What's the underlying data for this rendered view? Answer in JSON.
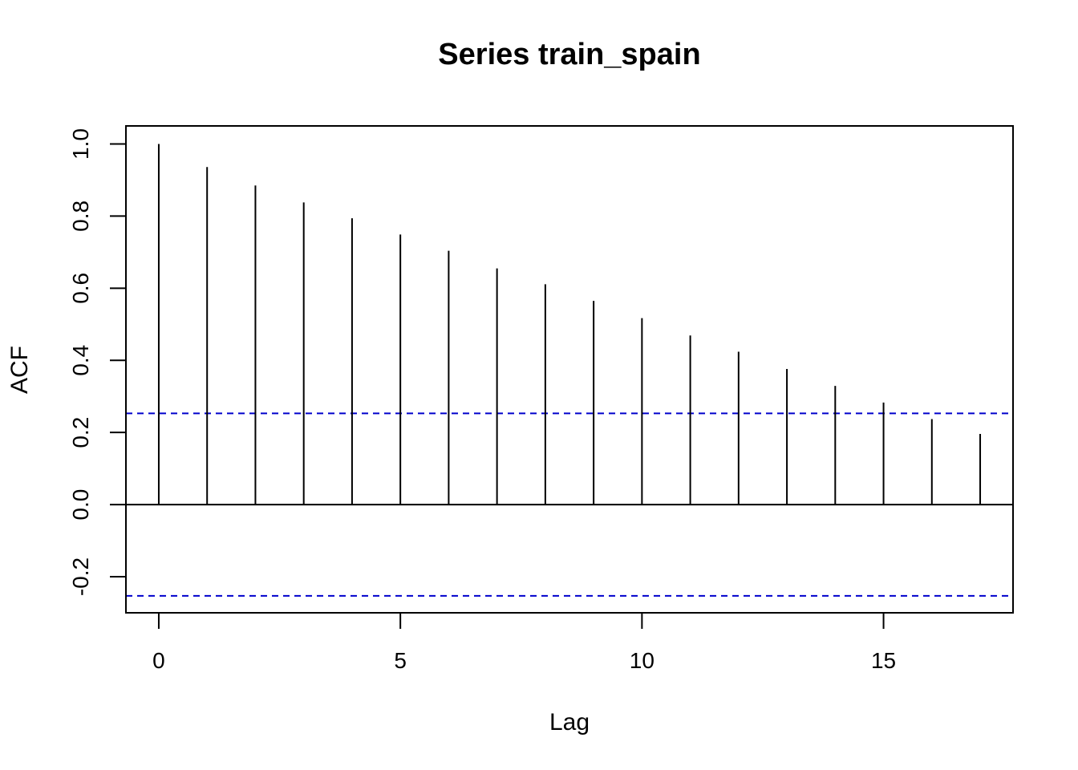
{
  "chart_data": {
    "type": "bar",
    "title": "Series  train_spain",
    "xlabel": "Lag",
    "ylabel": "ACF",
    "x": [
      0,
      1,
      2,
      3,
      4,
      5,
      6,
      7,
      8,
      9,
      10,
      11,
      12,
      13,
      14,
      15,
      16,
      17
    ],
    "values": [
      1.0,
      0.936,
      0.885,
      0.838,
      0.794,
      0.749,
      0.704,
      0.655,
      0.611,
      0.565,
      0.517,
      0.469,
      0.424,
      0.376,
      0.329,
      0.283,
      0.237,
      0.196
    ],
    "confidence_bound": 0.253,
    "xlim": [
      -0.68,
      17.68
    ],
    "ylim": [
      -0.3,
      1.05
    ],
    "xticks": [
      0,
      5,
      10,
      15
    ],
    "yticks": [
      -0.2,
      0.0,
      0.2,
      0.4,
      0.6,
      0.8,
      1.0
    ],
    "ytick_labels": [
      "-0.2",
      "0.0",
      "0.2",
      "0.4",
      "0.6",
      "0.8",
      "1.0"
    ],
    "bar_color": "#000000",
    "bound_color": "#0000cc",
    "grid": false
  }
}
